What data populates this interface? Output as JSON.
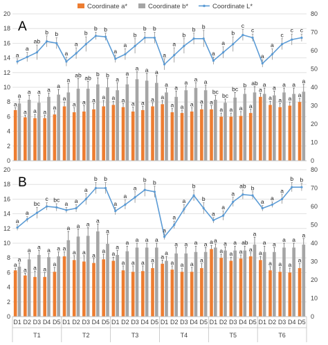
{
  "legend": [
    {
      "label": "Coordinate a*",
      "color": "#ED7D31"
    },
    {
      "label": "Coordinate b*",
      "color": "#A5A5A5"
    },
    {
      "label": "Coordinate L*",
      "color": "#5B9BD5"
    }
  ],
  "x_groups": [
    "T1",
    "T2",
    "T3",
    "T4",
    "T5",
    "T6"
  ],
  "x_subs": [
    "D1",
    "D2",
    "D3",
    "D4",
    "D5"
  ],
  "chart_data": [
    {
      "type": "bar",
      "panel_label": "A",
      "categories": [
        "D1",
        "D2",
        "D3",
        "D4",
        "D5",
        "D1",
        "D2",
        "D3",
        "D4",
        "D5",
        "D1",
        "D2",
        "D3",
        "D4",
        "D5",
        "D1",
        "D2",
        "D3",
        "D4",
        "D5",
        "D1",
        "D2",
        "D3",
        "D4",
        "D5",
        "D1",
        "D2",
        "D3",
        "D4",
        "D5"
      ],
      "groups": [
        "T1",
        "T2",
        "T3",
        "T4",
        "T5",
        "T6"
      ],
      "y_left": {
        "ylim": [
          0,
          20
        ],
        "ticks": [
          0,
          2,
          4,
          6,
          8,
          10,
          12,
          14,
          16,
          18,
          20
        ]
      },
      "y_right": {
        "ylim": [
          0,
          80
        ],
        "ticks": [
          0,
          10,
          20,
          30,
          40,
          50,
          60,
          70,
          80
        ]
      },
      "legend_position": "top",
      "grid": true,
      "series": [
        {
          "name": "Coordinate a*",
          "axis": "left",
          "kind": "bar",
          "values": [
            6.9,
            5.9,
            5.8,
            5.8,
            6.3,
            7.4,
            6.6,
            6.7,
            7.0,
            7.4,
            7.6,
            7.3,
            6.7,
            6.9,
            7.4,
            7.7,
            6.6,
            6.5,
            6.7,
            7.0,
            7.0,
            6.0,
            6.0,
            6.1,
            6.5,
            8.7,
            7.6,
            7.3,
            7.5,
            8.0
          ],
          "errors": [
            0.3,
            0.3,
            0.5,
            0.4,
            0.5,
            0.6,
            0.6,
            0.8,
            0.8,
            0.8,
            0.5,
            0.5,
            0.6,
            0.5,
            0.5,
            0.5,
            0.5,
            0.4,
            0.5,
            0.6,
            0.5,
            0.5,
            0.5,
            0.6,
            0.5,
            0.5,
            0.5,
            0.5,
            0.5,
            0.5
          ],
          "labels": [
            "a",
            "a",
            "a",
            "a",
            "a",
            "a",
            "a",
            "a",
            "a",
            "a",
            "a",
            "a",
            "a",
            "a",
            "a",
            "a",
            "a",
            "a",
            "a",
            "a",
            "a",
            "a",
            "a",
            "a",
            "a",
            "a",
            "a",
            "a",
            "a",
            "a"
          ]
        },
        {
          "name": "Coordinate b*",
          "axis": "left",
          "kind": "bar",
          "values": [
            7.8,
            8.3,
            7.9,
            8.7,
            9.0,
            9.3,
            9.8,
            9.8,
            10.4,
            10.0,
            9.6,
            10.4,
            11.1,
            10.9,
            10.6,
            9.3,
            8.7,
            9.6,
            9.9,
            9.6,
            8.3,
            7.9,
            8.6,
            9.1,
            9.3,
            9.1,
            8.9,
            9.3,
            9.1,
            9.4
          ],
          "errors": [
            0.6,
            0.6,
            1.0,
            0.5,
            0.7,
            1.2,
            1.4,
            1.0,
            0.9,
            1.2,
            1.0,
            1.0,
            1.0,
            1.0,
            1.0,
            0.6,
            0.8,
            0.6,
            0.7,
            0.7,
            0.6,
            0.5,
            0.7,
            0.7,
            0.8,
            0.8,
            0.6,
            0.6,
            0.8,
            1.0
          ],
          "labels": [
            "a",
            "a",
            "a",
            "a",
            "a",
            "a",
            "ab",
            "ab",
            "b",
            "b",
            "a",
            "a",
            "a",
            "a",
            "a",
            "a",
            "a",
            "a",
            "a",
            "a",
            "bc",
            "bc",
            "bc",
            "b",
            "ab",
            "a",
            "a",
            "a",
            "a",
            "a"
          ]
        },
        {
          "name": "Coordinate L*",
          "axis": "right",
          "kind": "line",
          "values": [
            54.0,
            56.5,
            59.0,
            65.0,
            64.0,
            54.0,
            58.5,
            63.5,
            68.0,
            67.5,
            55.5,
            58.0,
            62.5,
            67.0,
            67.0,
            52.5,
            57.5,
            62.5,
            66.5,
            66.5,
            54.5,
            59.0,
            63.5,
            68.5,
            67.0,
            53.0,
            58.0,
            63.5,
            66.0,
            67.0
          ],
          "errors": [
            1.5,
            2.5,
            4.0,
            3.0,
            3.0,
            2.5,
            3.0,
            4.0,
            2.0,
            2.0,
            2.0,
            3.0,
            4.0,
            3.0,
            3.0,
            3.0,
            4.0,
            4.0,
            3.0,
            4.5,
            2.0,
            3.0,
            4.0,
            3.0,
            2.0,
            2.0,
            3.0,
            3.0,
            3.0,
            2.0
          ],
          "labels": [
            "a",
            "a",
            "ab",
            "b",
            "b",
            "a",
            "a",
            "b",
            "b",
            "b",
            "a",
            "a",
            "b",
            "b",
            "b",
            "a",
            "a",
            "b",
            "b",
            "b",
            "a",
            "a",
            "b",
            "c",
            "c",
            "a",
            "a",
            "c",
            "c",
            "c"
          ]
        }
      ]
    },
    {
      "type": "bar",
      "panel_label": "B",
      "categories": [
        "D1",
        "D2",
        "D3",
        "D4",
        "D5",
        "D1",
        "D2",
        "D3",
        "D4",
        "D5",
        "D1",
        "D2",
        "D3",
        "D4",
        "D5",
        "D1",
        "D2",
        "D3",
        "D4",
        "D5",
        "D1",
        "D2",
        "D3",
        "D4",
        "D5",
        "D1",
        "D2",
        "D3",
        "D4",
        "D5"
      ],
      "groups": [
        "T1",
        "T2",
        "T3",
        "T4",
        "T5",
        "T6"
      ],
      "y_left": {
        "ylim": [
          0,
          20
        ],
        "ticks": [
          0,
          2,
          4,
          6,
          8,
          10,
          12,
          14,
          16,
          18,
          20
        ]
      },
      "y_right": {
        "ylim": [
          0,
          80
        ],
        "ticks": [
          0,
          10,
          20,
          30,
          40,
          50,
          60,
          70,
          80
        ]
      },
      "grid": true,
      "series": [
        {
          "name": "Coordinate a*",
          "axis": "left",
          "kind": "bar",
          "values": [
            6.3,
            5.6,
            5.4,
            5.4,
            6.1,
            8.2,
            7.7,
            7.5,
            7.3,
            7.8,
            7.6,
            6.3,
            6.1,
            6.2,
            6.6,
            7.2,
            6.4,
            6.1,
            6.1,
            6.6,
            9.2,
            8.0,
            7.6,
            7.9,
            8.2,
            7.7,
            6.3,
            6.1,
            6.0,
            6.6
          ],
          "errors": [
            0.3,
            0.3,
            0.8,
            0.6,
            0.6,
            0.6,
            0.6,
            0.8,
            0.6,
            0.7,
            0.5,
            0.6,
            0.8,
            0.7,
            0.6,
            0.5,
            0.5,
            0.5,
            0.6,
            0.6,
            0.5,
            0.5,
            0.5,
            0.5,
            0.5,
            0.5,
            0.5,
            0.6,
            0.6,
            0.6
          ],
          "labels": [
            "a",
            "a",
            "a",
            "a",
            "a",
            "a",
            "a",
            "a",
            "a",
            "a",
            "a",
            "a",
            "a",
            "a",
            "a",
            "a",
            "a",
            "a",
            "a",
            "a",
            "a",
            "a",
            "a",
            "a",
            "a",
            "a",
            "a",
            "a",
            "a",
            "a"
          ]
        },
        {
          "name": "Coordinate b*",
          "axis": "left",
          "kind": "bar",
          "values": [
            6.8,
            7.8,
            8.4,
            8.1,
            8.2,
            10.4,
            10.9,
            11.0,
            11.6,
            9.9,
            8.4,
            8.9,
            9.4,
            9.4,
            9.4,
            7.6,
            8.6,
            8.6,
            8.8,
            8.8,
            9.4,
            9.0,
            9.0,
            9.0,
            9.8,
            8.8,
            8.8,
            9.4,
            9.4,
            9.8
          ],
          "errors": [
            0.5,
            0.8,
            0.6,
            0.5,
            0.6,
            1.2,
            1.0,
            1.1,
            1.0,
            1.3,
            0.6,
            0.7,
            0.6,
            0.6,
            0.6,
            0.6,
            0.8,
            0.8,
            0.8,
            0.6,
            0.5,
            0.5,
            0.6,
            0.6,
            1.0,
            0.8,
            0.6,
            0.6,
            0.6,
            0.8
          ],
          "labels": [
            "a",
            "a",
            "a",
            "a",
            "a",
            "a",
            "a",
            "a",
            "a",
            "a",
            "a",
            "a",
            "a",
            "a",
            "a",
            "a",
            "a",
            "a",
            "a",
            "a",
            "a",
            "a",
            "a",
            "ab",
            "a",
            "a",
            "a",
            "a",
            "a",
            "a"
          ]
        },
        {
          "name": "Coordinate L*",
          "axis": "right",
          "kind": "line",
          "values": [
            48.5,
            53.0,
            56.5,
            60.0,
            59.5,
            58.0,
            59.0,
            64.0,
            70.0,
            70.0,
            57.5,
            61.0,
            65.0,
            69.0,
            68.0,
            43.5,
            50.0,
            58.5,
            66.0,
            59.0,
            52.5,
            55.0,
            62.5,
            66.5,
            66.0,
            59.0,
            61.0,
            64.0,
            70.5,
            70.5
          ],
          "errors": [
            1.5,
            1.5,
            3.0,
            2.0,
            2.0,
            1.5,
            2.0,
            3.0,
            3.0,
            3.0,
            2.0,
            2.5,
            3.0,
            3.5,
            3.0,
            1.5,
            2.0,
            2.5,
            3.0,
            3.0,
            1.5,
            2.5,
            2.5,
            2.5,
            2.0,
            1.5,
            1.5,
            2.5,
            2.5,
            2.0
          ],
          "labels": [
            "a",
            "a",
            "bc",
            "c",
            "bc",
            "a",
            "a",
            "a",
            "b",
            "b",
            "a",
            "a",
            "a",
            "b",
            "b",
            "a",
            "a",
            "a",
            "b",
            "b",
            "a",
            "a",
            "a",
            "ab",
            "b",
            "a",
            "a",
            "a",
            "b",
            "b"
          ]
        }
      ]
    }
  ]
}
